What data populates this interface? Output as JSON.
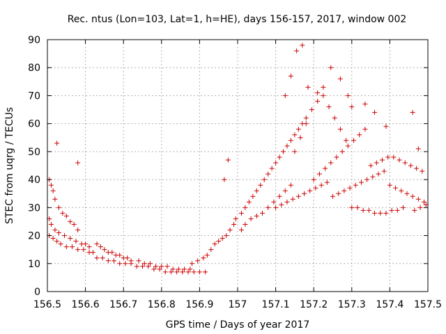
{
  "chart_data": {
    "type": "scatter",
    "title": "Rec. ntus (Lon=103, Lat=1, h=HE), days 156-157, 2017, window 002",
    "xlabel": "GPS time / Days of year 2017",
    "ylabel": "STEC from uqrg / TECUs",
    "xlim": [
      156.5,
      157.5
    ],
    "ylim": [
      0,
      90
    ],
    "xticks": [
      "156.5",
      "156.6",
      "156.7",
      "156.8",
      "156.9",
      "157",
      "157.1",
      "157.2",
      "157.3",
      "157.4",
      "157.5"
    ],
    "yticks": [
      "0",
      "10",
      "20",
      "30",
      "40",
      "50",
      "60",
      "70",
      "80",
      "90"
    ],
    "grid": true,
    "marker": "+",
    "color": "#cc0000",
    "x": [
      156.505,
      156.51,
      156.515,
      156.52,
      156.53,
      156.54,
      156.55,
      156.56,
      156.57,
      156.58,
      156.505,
      156.51,
      156.52,
      156.53,
      156.545,
      156.56,
      156.575,
      156.59,
      156.6,
      156.61,
      156.505,
      156.515,
      156.525,
      156.535,
      156.55,
      156.565,
      156.58,
      156.595,
      156.61,
      156.62,
      156.63,
      156.64,
      156.65,
      156.66,
      156.67,
      156.68,
      156.69,
      156.7,
      156.71,
      156.72,
      156.63,
      156.645,
      156.66,
      156.675,
      156.69,
      156.705,
      156.72,
      156.735,
      156.75,
      156.765,
      156.74,
      156.755,
      156.77,
      156.785,
      156.8,
      156.815,
      156.83,
      156.845,
      156.86,
      156.875,
      156.78,
      156.795,
      156.81,
      156.825,
      156.84,
      156.855,
      156.87,
      156.885,
      156.9,
      156.915,
      156.88,
      156.895,
      156.91,
      156.92,
      156.93,
      156.94,
      156.95,
      156.96,
      156.97,
      156.98,
      156.99,
      156.995,
      157.01,
      157.02,
      157.03,
      157.04,
      157.05,
      157.06,
      157.07,
      157.08,
      157.01,
      157.02,
      157.035,
      157.05,
      157.065,
      157.08,
      157.095,
      157.11,
      157.125,
      157.14,
      157.09,
      157.1,
      157.11,
      157.12,
      157.13,
      157.14,
      157.15,
      157.16,
      157.17,
      157.18,
      157.1,
      157.115,
      157.13,
      157.145,
      157.16,
      157.175,
      157.19,
      157.205,
      157.22,
      157.235,
      157.15,
      157.165,
      157.18,
      157.195,
      157.21,
      157.225,
      157.24,
      157.255,
      157.27,
      157.285,
      157.2,
      157.215,
      157.23,
      157.245,
      157.26,
      157.275,
      157.29,
      157.305,
      157.32,
      157.335,
      157.25,
      157.265,
      157.28,
      157.295,
      157.31,
      157.325,
      157.34,
      157.355,
      157.37,
      157.385,
      157.3,
      157.315,
      157.33,
      157.345,
      157.36,
      157.375,
      157.39,
      157.405,
      157.42,
      157.435,
      157.35,
      157.365,
      157.38,
      157.395,
      157.41,
      157.425,
      157.44,
      157.455,
      157.47,
      157.485,
      157.4,
      157.415,
      157.43,
      157.445,
      157.46,
      157.475,
      157.49,
      157.495,
      157.48,
      157.465,
      156.525,
      156.58,
      156.965,
      156.975,
      157.155,
      157.17,
      157.185,
      157.245,
      157.27,
      157.335,
      157.36,
      157.39,
      157.46,
      157.475,
      157.125,
      157.14,
      157.21,
      157.225,
      157.29,
      157.3
    ],
    "y": [
      40,
      38,
      36,
      33,
      30,
      28,
      27,
      25,
      24,
      22,
      26,
      24,
      22,
      21,
      20,
      19,
      18,
      17,
      17,
      16,
      20,
      19,
      18,
      17,
      16,
      16,
      15,
      15,
      14,
      14,
      17,
      16,
      15,
      14,
      14,
      13,
      13,
      12,
      12,
      11,
      12,
      12,
      11,
      11,
      10,
      10,
      10,
      9,
      9,
      9,
      11,
      10,
      10,
      9,
      9,
      9,
      8,
      8,
      8,
      8,
      8,
      8,
      7,
      7,
      7,
      7,
      7,
      7,
      7,
      7,
      10,
      11,
      12,
      13,
      15,
      17,
      18,
      19,
      20,
      22,
      24,
      26,
      28,
      30,
      32,
      34,
      36,
      38,
      40,
      42,
      22,
      24,
      26,
      27,
      28,
      30,
      32,
      34,
      36,
      38,
      44,
      46,
      48,
      50,
      52,
      54,
      56,
      58,
      60,
      62,
      30,
      31,
      32,
      33,
      34,
      35,
      36,
      37,
      38,
      39,
      50,
      55,
      60,
      65,
      68,
      70,
      66,
      62,
      58,
      54,
      40,
      42,
      44,
      46,
      48,
      50,
      52,
      54,
      56,
      58,
      34,
      35,
      36,
      37,
      38,
      39,
      40,
      41,
      42,
      43,
      30,
      30,
      29,
      29,
      28,
      28,
      28,
      29,
      29,
      30,
      45,
      46,
      47,
      48,
      48,
      47,
      46,
      45,
      44,
      43,
      38,
      37,
      36,
      35,
      34,
      33,
      32,
      31,
      30,
      29,
      53,
      46,
      40,
      47,
      86,
      88,
      73,
      80,
      76,
      67,
      64,
      59,
      64,
      51,
      70,
      77,
      71,
      73,
      70,
      66
    ]
  }
}
